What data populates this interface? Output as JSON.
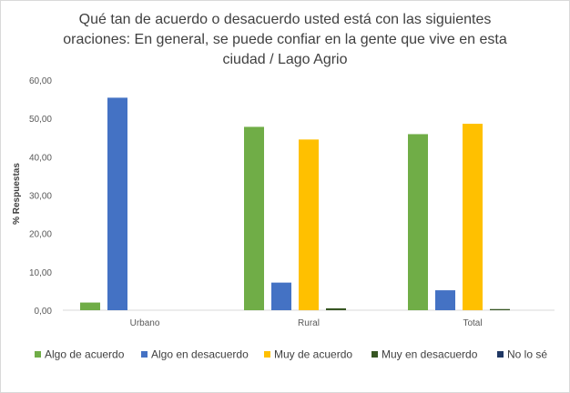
{
  "chart_data": {
    "type": "bar",
    "title_lines": [
      "Qué tan de acuerdo o desacuerdo usted está con las siguientes",
      "oraciones: En general, se puede confiar en la gente que vive en esta",
      "ciudad / Lago Agrio"
    ],
    "categories": [
      "Urbano",
      "Rural",
      "Total"
    ],
    "series": [
      {
        "name": "Algo de acuerdo",
        "color": "#70ad47",
        "values": [
          2.0,
          47.8,
          45.9
        ]
      },
      {
        "name": "Algo en desacuerdo",
        "color": "#4472c4",
        "values": [
          55.4,
          7.2,
          5.2
        ]
      },
      {
        "name": "Muy de acuerdo",
        "color": "#ffc000",
        "values": [
          0,
          44.5,
          48.6
        ]
      },
      {
        "name": "Muy en desacuerdo",
        "color": "#375623",
        "values": [
          0,
          0.5,
          0.3
        ]
      },
      {
        "name": "No lo sé",
        "color": "#203864",
        "values": [
          0,
          0,
          0
        ]
      }
    ],
    "ylabel": "% Respuestas",
    "xlabel": "",
    "ylim": [
      0,
      60
    ],
    "yticks": [
      "0,00",
      "10,00",
      "20,00",
      "30,00",
      "40,00",
      "50,00",
      "60,00"
    ],
    "gridlines": false,
    "legend_position": "bottom"
  }
}
